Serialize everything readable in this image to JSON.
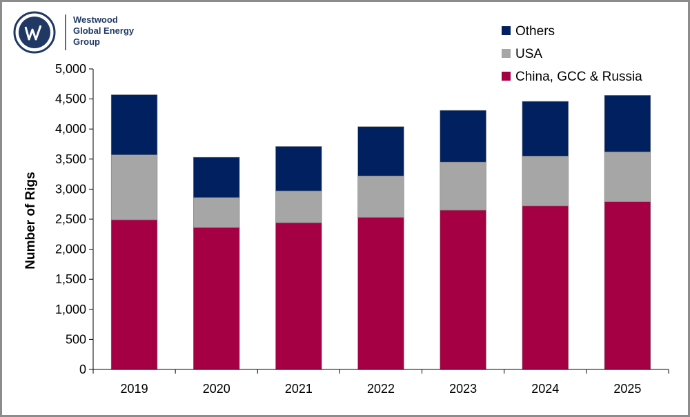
{
  "logo": {
    "lines": [
      "Westwood",
      "Global Energy",
      "Group"
    ],
    "color": "#1f3864"
  },
  "chart_data": {
    "type": "bar",
    "stacked": true,
    "categories": [
      "2019",
      "2020",
      "2021",
      "2022",
      "2023",
      "2024",
      "2025"
    ],
    "series": [
      {
        "name": "China, GCC & Russia",
        "color": "#a50044",
        "values": [
          2490,
          2360,
          2440,
          2530,
          2650,
          2720,
          2790
        ]
      },
      {
        "name": "USA",
        "color": "#a6a6a6",
        "values": [
          1080,
          500,
          530,
          690,
          800,
          830,
          830
        ]
      },
      {
        "name": "Others",
        "color": "#002060",
        "values": [
          1000,
          670,
          740,
          820,
          860,
          910,
          940
        ]
      }
    ],
    "ylabel": "Number of Rigs",
    "ylim": [
      0,
      5000
    ],
    "yticks": [
      0,
      500,
      1000,
      1500,
      2000,
      2500,
      3000,
      3500,
      4000,
      4500,
      5000
    ],
    "ytick_labels": [
      "0",
      "500",
      "1,000",
      "1,500",
      "2,000",
      "2,500",
      "3,000",
      "3,500",
      "4,000",
      "4,500",
      "5,000"
    ],
    "grid": false,
    "legend": {
      "position": "top-right",
      "order": [
        "Others",
        "USA",
        "China, GCC & Russia"
      ]
    }
  }
}
